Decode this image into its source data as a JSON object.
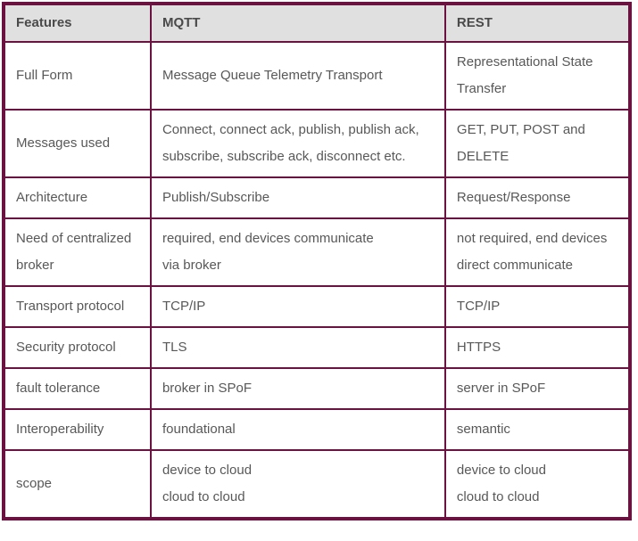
{
  "table": {
    "headers": [
      {
        "label": "Features"
      },
      {
        "label": "MQTT"
      },
      {
        "label": "REST"
      }
    ],
    "rows": [
      {
        "feature": [
          "Full Form"
        ],
        "mqtt": [
          "Message Queue Telemetry Transport"
        ],
        "rest": [
          "Representational State",
          "Transfer"
        ]
      },
      {
        "feature": [
          "Messages used"
        ],
        "mqtt": [
          "Connect, connect ack, publish, publish ack,",
          "subscribe, subscribe ack, disconnect etc."
        ],
        "rest": [
          "GET, PUT, POST and",
          "DELETE"
        ]
      },
      {
        "feature": [
          "Architecture"
        ],
        "mqtt": [
          "Publish/Subscribe"
        ],
        "rest": [
          "Request/Response"
        ]
      },
      {
        "feature": [
          "Need of centralized",
          "broker"
        ],
        "mqtt": [
          "required, end devices communicate",
          "via broker"
        ],
        "rest": [
          "not required, end devices",
          "direct communicate"
        ]
      },
      {
        "feature": [
          "Transport protocol"
        ],
        "mqtt": [
          "TCP/IP"
        ],
        "rest": [
          "TCP/IP"
        ]
      },
      {
        "feature": [
          "Security protocol"
        ],
        "mqtt": [
          "TLS"
        ],
        "rest": [
          "HTTPS"
        ]
      },
      {
        "feature": [
          "fault tolerance"
        ],
        "mqtt": [
          "broker in SPoF"
        ],
        "rest": [
          "server in SPoF"
        ]
      },
      {
        "feature": [
          "Interoperability"
        ],
        "mqtt": [
          "foundational"
        ],
        "rest": [
          "semantic"
        ]
      },
      {
        "feature": [
          "scope"
        ],
        "mqtt": [
          "device to cloud",
          "cloud to cloud"
        ],
        "rest": [
          "device to cloud",
          "cloud to cloud"
        ]
      }
    ]
  },
  "colors": {
    "border": "#6b1240",
    "header_bg": "#e0e0e0",
    "header_text": "#4a4a4a",
    "body_text": "#585858"
  }
}
